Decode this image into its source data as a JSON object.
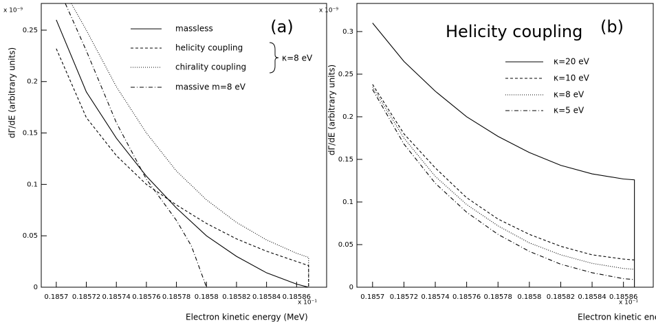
{
  "chart_data": [
    {
      "type": "line",
      "title": "(a)",
      "x_label": "Electron kinetic energy (MeV)",
      "y_label": "dΓ/dE (arbitrary units)",
      "x_multiplier": "x 10⁻¹",
      "y_multiplier": "x 10⁻⁹",
      "xlim": [
        0.18569,
        0.18588
      ],
      "xticks": [
        0.1857,
        0.18572,
        0.18574,
        0.18576,
        0.18578,
        0.1858,
        0.18582,
        0.18584,
        0.18586
      ],
      "ylim": [
        0,
        0.276
      ],
      "yticks": [
        0,
        0.05,
        0.1,
        0.15,
        0.2,
        0.25
      ],
      "legend_note": "κ=8 eV",
      "series": [
        {
          "name": "massless",
          "color": "#000",
          "dash": "solid",
          "x": [
            0.1857,
            0.18572,
            0.18574,
            0.18576,
            0.18578,
            0.1858,
            0.18582,
            0.18584,
            0.18586,
            0.185868
          ],
          "values": [
            0.26,
            0.19,
            0.145,
            0.108,
            0.077,
            0.05,
            0.03,
            0.014,
            0.003,
            0
          ]
        },
        {
          "name": "helicity coupling",
          "color": "#000",
          "dash": "dashed",
          "x": [
            0.1857,
            0.18572,
            0.18574,
            0.18576,
            0.18578,
            0.1858,
            0.18582,
            0.18584,
            0.18586,
            0.185868,
            0.185868
          ],
          "values": [
            0.232,
            0.165,
            0.128,
            0.1,
            0.08,
            0.062,
            0.047,
            0.035,
            0.025,
            0.021,
            0
          ]
        },
        {
          "name": "chirality coupling",
          "color": "#000",
          "dash": "dotted",
          "x": [
            0.18571,
            0.18572,
            0.18574,
            0.18576,
            0.18578,
            0.1858,
            0.18582,
            0.18584,
            0.18586,
            0.185868,
            0.185868
          ],
          "values": [
            0.276,
            0.25,
            0.195,
            0.15,
            0.113,
            0.085,
            0.063,
            0.046,
            0.033,
            0.029,
            0
          ]
        },
        {
          "name": "massive   m=8 eV",
          "color": "#000",
          "dash": "dashdot",
          "x": [
            0.185706,
            0.18572,
            0.18574,
            0.18576,
            0.18578,
            0.18579,
            0.1858
          ],
          "values": [
            0.276,
            0.23,
            0.16,
            0.105,
            0.065,
            0.04,
            0
          ]
        }
      ]
    },
    {
      "type": "line",
      "title": "(b)",
      "subtitle": "Helicity coupling",
      "x_label": "Electron kinetic energy (MeV)",
      "y_label": "dΓ/dE (arbitrary units)",
      "x_multiplier": "x 10⁻¹",
      "y_multiplier": "x 10⁻⁹",
      "xlim": [
        0.18569,
        0.185879
      ],
      "xticks": [
        0.1857,
        0.18572,
        0.18574,
        0.18576,
        0.18578,
        0.1858,
        0.18582,
        0.18584,
        0.18586
      ],
      "ylim": [
        0,
        0.333
      ],
      "yticks": [
        0,
        0.05,
        0.1,
        0.15,
        0.2,
        0.25,
        0.3
      ],
      "series": [
        {
          "name": "κ=20 eV",
          "color": "#000",
          "dash": "solid",
          "x": [
            0.1857,
            0.18572,
            0.18574,
            0.18576,
            0.18578,
            0.1858,
            0.18582,
            0.18584,
            0.18586,
            0.185867,
            0.185867
          ],
          "values": [
            0.31,
            0.265,
            0.23,
            0.2,
            0.177,
            0.158,
            0.143,
            0.133,
            0.127,
            0.126,
            0
          ]
        },
        {
          "name": "κ=10 eV",
          "color": "#000",
          "dash": "dashed",
          "x": [
            0.1857,
            0.18572,
            0.18574,
            0.18576,
            0.18578,
            0.1858,
            0.18582,
            0.18584,
            0.18586,
            0.185867
          ],
          "values": [
            0.238,
            0.18,
            0.14,
            0.105,
            0.08,
            0.062,
            0.048,
            0.038,
            0.033,
            0.032
          ]
        },
        {
          "name": "κ=8 eV",
          "color": "#000",
          "dash": "dotted",
          "x": [
            0.1857,
            0.18572,
            0.18574,
            0.18576,
            0.18578,
            0.1858,
            0.18582,
            0.18584,
            0.18586,
            0.185867
          ],
          "values": [
            0.235,
            0.175,
            0.13,
            0.097,
            0.072,
            0.052,
            0.038,
            0.028,
            0.022,
            0.021
          ]
        },
        {
          "name": "κ=5 eV",
          "color": "#000",
          "dash": "dashdot",
          "x": [
            0.1857,
            0.18572,
            0.18574,
            0.18576,
            0.18578,
            0.1858,
            0.18582,
            0.18584,
            0.18586,
            0.185867
          ],
          "values": [
            0.232,
            0.168,
            0.122,
            0.088,
            0.062,
            0.042,
            0.027,
            0.017,
            0.01,
            0.009
          ]
        }
      ]
    }
  ]
}
